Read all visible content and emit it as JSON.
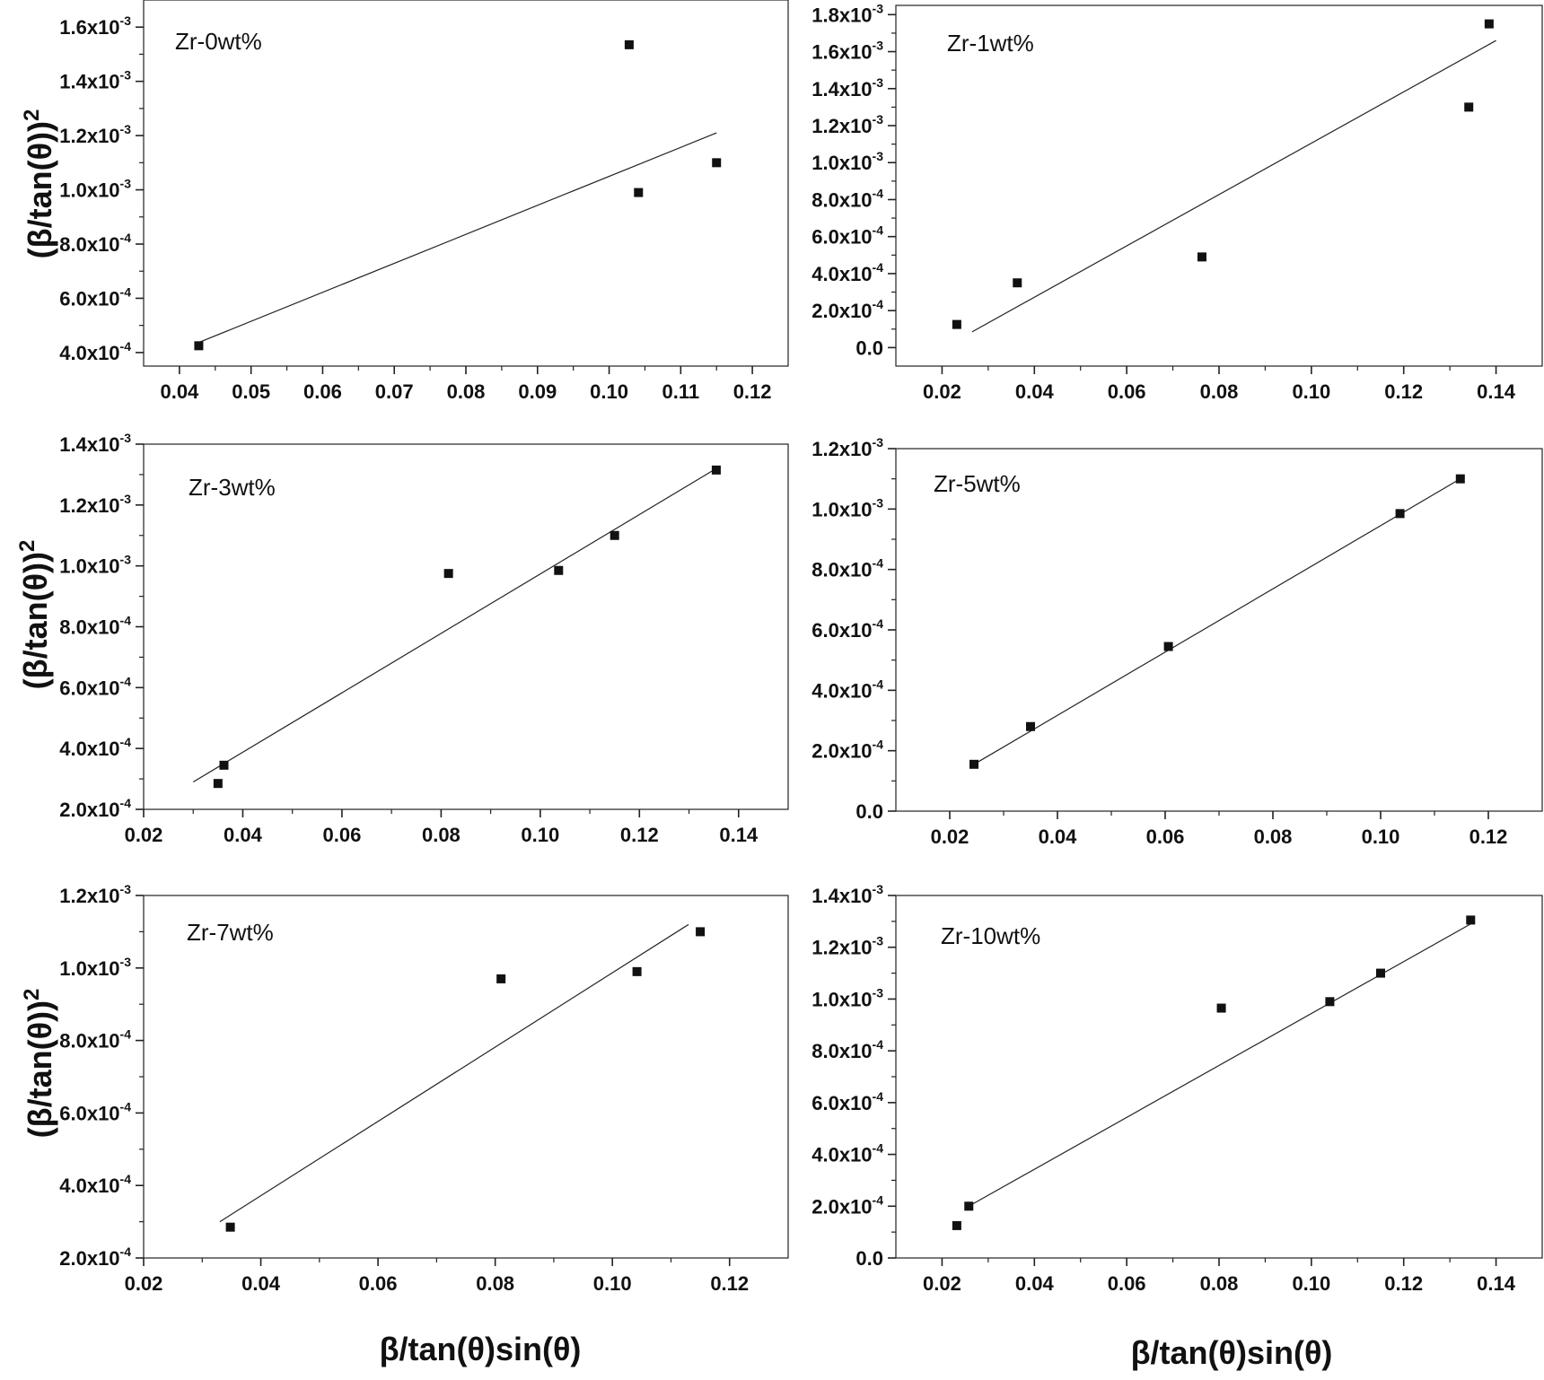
{
  "figure": {
    "ylabel_base": "(β/tan(θ))",
    "ylabel_power": "2",
    "xlabel": "β/tan(θ)sin(θ)"
  },
  "chart_data": [
    {
      "type": "scatter",
      "label": "Zr-0wt%",
      "xlim": [
        0.035,
        0.125
      ],
      "ylim": [
        0.00035,
        0.0017
      ],
      "xticks": [
        0.04,
        0.05,
        0.06,
        0.07,
        0.08,
        0.09,
        0.1,
        0.11,
        0.12
      ],
      "xtick_labels": [
        "0.04",
        "0.05",
        "0.06",
        "0.07",
        "0.08",
        "0.09",
        "0.10",
        "0.11",
        "0.12"
      ],
      "yticks": [
        0.0004,
        0.0006,
        0.0008,
        0.001,
        0.0012,
        0.0014,
        0.0016
      ],
      "ytick_labels": [
        {
          "mantissa": "4.0x10",
          "exponent": "-4"
        },
        {
          "mantissa": "6.0x10",
          "exponent": "-4"
        },
        {
          "mantissa": "8.0x10",
          "exponent": "-4"
        },
        {
          "mantissa": "1.0x10",
          "exponent": "-3"
        },
        {
          "mantissa": "1.2x10",
          "exponent": "-3"
        },
        {
          "mantissa": "1.4x10",
          "exponent": "-3"
        },
        {
          "mantissa": "1.6x10",
          "exponent": "-3"
        }
      ],
      "points": [
        {
          "x": 0.0427,
          "y": 0.000425
        },
        {
          "x": 0.1028,
          "y": 0.001535
        },
        {
          "x": 0.1041,
          "y": 0.00099
        },
        {
          "x": 0.115,
          "y": 0.0011
        }
      ],
      "fit": {
        "x": [
          0.0425,
          0.115
        ],
        "y": [
          0.000435,
          0.00121
        ]
      }
    },
    {
      "type": "scatter",
      "label": "Zr-1wt%",
      "xlim": [
        0.01,
        0.15
      ],
      "ylim": [
        -0.0001,
        0.00185
      ],
      "xticks": [
        0.02,
        0.04,
        0.06,
        0.08,
        0.1,
        0.12,
        0.14
      ],
      "xtick_labels": [
        "0.02",
        "0.04",
        "0.06",
        "0.08",
        "0.10",
        "0.12",
        "0.14"
      ],
      "yticks": [
        0,
        0.0002,
        0.0004,
        0.0006,
        0.0008,
        0.001,
        0.0012,
        0.0014,
        0.0016,
        0.0018
      ],
      "ytick_labels": [
        {
          "mantissa": "0.0",
          "exponent": ""
        },
        {
          "mantissa": "2.0x10",
          "exponent": "-4"
        },
        {
          "mantissa": "4.0x10",
          "exponent": "-4"
        },
        {
          "mantissa": "6.0x10",
          "exponent": "-4"
        },
        {
          "mantissa": "8.0x10",
          "exponent": "-4"
        },
        {
          "mantissa": "1.0x10",
          "exponent": "-3"
        },
        {
          "mantissa": "1.2x10",
          "exponent": "-3"
        },
        {
          "mantissa": "1.4x10",
          "exponent": "-3"
        },
        {
          "mantissa": "1.6x10",
          "exponent": "-3"
        },
        {
          "mantissa": "1.8x10",
          "exponent": "-3"
        }
      ],
      "points": [
        {
          "x": 0.0232,
          "y": 0.000125
        },
        {
          "x": 0.0363,
          "y": 0.00035
        },
        {
          "x": 0.0763,
          "y": 0.00049
        },
        {
          "x": 0.1341,
          "y": 0.0013
        },
        {
          "x": 0.1385,
          "y": 0.00175
        }
      ],
      "fit": {
        "x": [
          0.0265,
          0.14
        ],
        "y": [
          8.5e-05,
          0.00166
        ]
      }
    },
    {
      "type": "scatter",
      "label": "Zr-3wt%",
      "xlim": [
        0.02,
        0.15
      ],
      "ylim": [
        0.0002,
        0.0014
      ],
      "xticks": [
        0.02,
        0.04,
        0.06,
        0.08,
        0.1,
        0.12,
        0.14
      ],
      "xtick_labels": [
        "0.02",
        "0.04",
        "0.06",
        "0.08",
        "0.10",
        "0.12",
        "0.14"
      ],
      "yticks": [
        0.0002,
        0.0004,
        0.0006,
        0.0008,
        0.001,
        0.0012,
        0.0014
      ],
      "ytick_labels": [
        {
          "mantissa": "2.0x10",
          "exponent": "-4"
        },
        {
          "mantissa": "4.0x10",
          "exponent": "-4"
        },
        {
          "mantissa": "6.0x10",
          "exponent": "-4"
        },
        {
          "mantissa": "8.0x10",
          "exponent": "-4"
        },
        {
          "mantissa": "1.0x10",
          "exponent": "-3"
        },
        {
          "mantissa": "1.2x10",
          "exponent": "-3"
        },
        {
          "mantissa": "1.4x10",
          "exponent": "-3"
        }
      ],
      "points": [
        {
          "x": 0.035,
          "y": 0.000285
        },
        {
          "x": 0.0362,
          "y": 0.000345
        },
        {
          "x": 0.0815,
          "y": 0.000975
        },
        {
          "x": 0.1037,
          "y": 0.000985
        },
        {
          "x": 0.115,
          "y": 0.0011
        },
        {
          "x": 0.1355,
          "y": 0.001315
        }
      ],
      "fit": {
        "x": [
          0.03,
          0.1355
        ],
        "y": [
          0.00029,
          0.00132
        ]
      }
    },
    {
      "type": "scatter",
      "label": "Zr-5wt%",
      "xlim": [
        0.01,
        0.13
      ],
      "ylim": [
        0,
        0.0012
      ],
      "xticks": [
        0.02,
        0.04,
        0.06,
        0.08,
        0.1,
        0.12
      ],
      "xtick_labels": [
        "0.02",
        "0.04",
        "0.06",
        "0.08",
        "0.10",
        "0.12"
      ],
      "yticks": [
        0,
        0.0002,
        0.0004,
        0.0006,
        0.0008,
        0.001,
        0.0012
      ],
      "ytick_labels": [
        {
          "mantissa": "0.0",
          "exponent": ""
        },
        {
          "mantissa": "2.0x10",
          "exponent": "-4"
        },
        {
          "mantissa": "4.0x10",
          "exponent": "-4"
        },
        {
          "mantissa": "6.0x10",
          "exponent": "-4"
        },
        {
          "mantissa": "8.0x10",
          "exponent": "-4"
        },
        {
          "mantissa": "1.0x10",
          "exponent": "-3"
        },
        {
          "mantissa": "1.2x10",
          "exponent": "-3"
        }
      ],
      "points": [
        {
          "x": 0.0245,
          "y": 0.000155
        },
        {
          "x": 0.035,
          "y": 0.00028
        },
        {
          "x": 0.0606,
          "y": 0.000545
        },
        {
          "x": 0.1036,
          "y": 0.000985
        },
        {
          "x": 0.1148,
          "y": 0.0011
        }
      ],
      "fit": {
        "x": [
          0.0245,
          0.1148
        ],
        "y": [
          0.000155,
          0.0011
        ]
      }
    },
    {
      "type": "scatter",
      "label": "Zr-7wt%",
      "xlim": [
        0.02,
        0.13
      ],
      "ylim": [
        0.0002,
        0.0012
      ],
      "xticks": [
        0.02,
        0.04,
        0.06,
        0.08,
        0.1,
        0.12
      ],
      "xtick_labels": [
        "0.02",
        "0.04",
        "0.06",
        "0.08",
        "0.10",
        "0.12"
      ],
      "yticks": [
        0.0002,
        0.0004,
        0.0006,
        0.0008,
        0.001,
        0.0012
      ],
      "ytick_labels": [
        {
          "mantissa": "2.0x10",
          "exponent": "-4"
        },
        {
          "mantissa": "4.0x10",
          "exponent": "-4"
        },
        {
          "mantissa": "6.0x10",
          "exponent": "-4"
        },
        {
          "mantissa": "8.0x10",
          "exponent": "-4"
        },
        {
          "mantissa": "1.0x10",
          "exponent": "-3"
        },
        {
          "mantissa": "1.2x10",
          "exponent": "-3"
        }
      ],
      "points": [
        {
          "x": 0.0348,
          "y": 0.000285
        },
        {
          "x": 0.081,
          "y": 0.00097
        },
        {
          "x": 0.1042,
          "y": 0.00099
        },
        {
          "x": 0.115,
          "y": 0.0011
        }
      ],
      "fit": {
        "x": [
          0.033,
          0.113
        ],
        "y": [
          0.0003,
          0.00112
        ]
      }
    },
    {
      "type": "scatter",
      "label": "Zr-10wt%",
      "xlim": [
        0.01,
        0.15
      ],
      "ylim": [
        0,
        0.0014
      ],
      "xticks": [
        0.02,
        0.04,
        0.06,
        0.08,
        0.1,
        0.12,
        0.14
      ],
      "xtick_labels": [
        "0.02",
        "0.04",
        "0.06",
        "0.08",
        "0.10",
        "0.12",
        "0.14"
      ],
      "yticks": [
        0,
        0.0002,
        0.0004,
        0.0006,
        0.0008,
        0.001,
        0.0012,
        0.0014
      ],
      "ytick_labels": [
        {
          "mantissa": "0.0",
          "exponent": ""
        },
        {
          "mantissa": "2.0x10",
          "exponent": "-4"
        },
        {
          "mantissa": "4.0x10",
          "exponent": "-4"
        },
        {
          "mantissa": "6.0x10",
          "exponent": "-4"
        },
        {
          "mantissa": "8.0x10",
          "exponent": "-4"
        },
        {
          "mantissa": "1.0x10",
          "exponent": "-3"
        },
        {
          "mantissa": "1.2x10",
          "exponent": "-3"
        },
        {
          "mantissa": "1.4x10",
          "exponent": "-3"
        }
      ],
      "points": [
        {
          "x": 0.0232,
          "y": 0.000125
        },
        {
          "x": 0.0258,
          "y": 0.0002
        },
        {
          "x": 0.0805,
          "y": 0.000965
        },
        {
          "x": 0.104,
          "y": 0.00099
        },
        {
          "x": 0.115,
          "y": 0.0011
        },
        {
          "x": 0.1345,
          "y": 0.001305
        }
      ],
      "fit": {
        "x": [
          0.0258,
          0.1345
        ],
        "y": [
          0.0002,
          0.00129
        ]
      }
    }
  ]
}
